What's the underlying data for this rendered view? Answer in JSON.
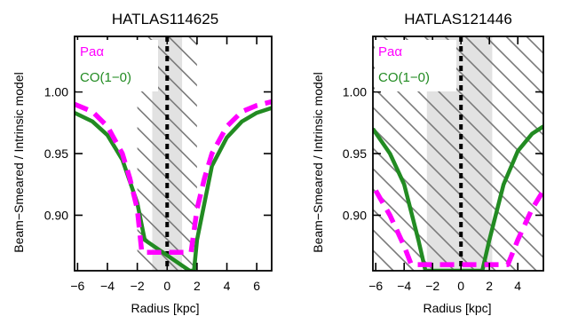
{
  "chart_data": [
    {
      "type": "line",
      "title": "HATLAS114625",
      "xlabel": "Radius [kpc]",
      "ylabel": "Beam−Smeared / Intrinsic model",
      "xlim": [
        -6.2,
        7.0
      ],
      "ylim": [
        0.855,
        1.045
      ],
      "xticks": [
        -6,
        -4,
        -2,
        0,
        2,
        4,
        6
      ],
      "xtick_labels": [
        "−6",
        "−4",
        "−2",
        "0",
        "2",
        "4",
        "6"
      ],
      "yticks": [
        0.9,
        0.95,
        1.0
      ],
      "ytick_labels": [
        "0.90",
        "0.95",
        "1.00"
      ],
      "shaded_band": [
        -1.0,
        1.0
      ],
      "hatched_band": [
        -2.0,
        2.0
      ],
      "legend_position": "top-left",
      "series": [
        {
          "name": "Paα",
          "color": "#ff00ff",
          "style": "dashed",
          "x": [
            -6.2,
            -5.0,
            -4.0,
            -3.0,
            -2.5,
            -2.0,
            -1.7,
            1.6,
            2.0,
            2.5,
            3.0,
            4.0,
            5.0,
            6.0,
            7.0
          ],
          "y": [
            0.99,
            0.984,
            0.972,
            0.95,
            0.93,
            0.905,
            0.87,
            0.87,
            0.905,
            0.93,
            0.95,
            0.972,
            0.984,
            0.989,
            0.992
          ]
        },
        {
          "name": "CO(1−0)",
          "color": "#228b22",
          "style": "solid",
          "x": [
            -6.2,
            -5.0,
            -4.0,
            -3.0,
            -2.0,
            -1.5,
            1.5,
            1.8,
            2.0,
            3.0,
            4.0,
            5.0,
            6.0,
            7.0
          ],
          "y": [
            0.983,
            0.976,
            0.965,
            0.945,
            0.91,
            0.88,
            0.855,
            0.855,
            0.88,
            0.94,
            0.963,
            0.976,
            0.983,
            0.987
          ]
        }
      ]
    },
    {
      "type": "line",
      "title": "HATLAS121446",
      "xlabel": "Radius [kpc]",
      "ylabel": "Beam−Smeared / Intrinsic model",
      "xlim": [
        -6.2,
        5.8
      ],
      "ylim": [
        0.855,
        1.045
      ],
      "xticks": [
        -6,
        -4,
        -2,
        0,
        2,
        4
      ],
      "xtick_labels": [
        "−6",
        "−4",
        "−2",
        "0",
        "2",
        "4"
      ],
      "yticks": [
        0.9,
        0.95,
        1.0
      ],
      "ytick_labels": [
        "0.90",
        "0.95",
        "1.00"
      ],
      "shaded_band": [
        -2.4,
        2.2
      ],
      "hatched_band": [
        -6.2,
        5.8
      ],
      "legend_position": "top-left",
      "series": [
        {
          "name": "Paα",
          "color": "#ff00ff",
          "style": "dashed",
          "x": [
            -6.0,
            -5.0,
            -4.0,
            -3.5,
            3.3,
            4.0,
            5.0,
            5.8
          ],
          "y": [
            0.92,
            0.9,
            0.875,
            0.86,
            0.86,
            0.88,
            0.905,
            0.92
          ]
        },
        {
          "name": "CO(1−0)",
          "color": "#228b22",
          "style": "solid",
          "x": [
            -6.2,
            -5.0,
            -4.0,
            -3.0,
            -2.5,
            1.5,
            2.0,
            3.0,
            4.0,
            5.0,
            5.8
          ],
          "y": [
            0.97,
            0.95,
            0.925,
            0.88,
            0.855,
            0.855,
            0.88,
            0.925,
            0.952,
            0.966,
            0.972
          ]
        }
      ]
    }
  ]
}
